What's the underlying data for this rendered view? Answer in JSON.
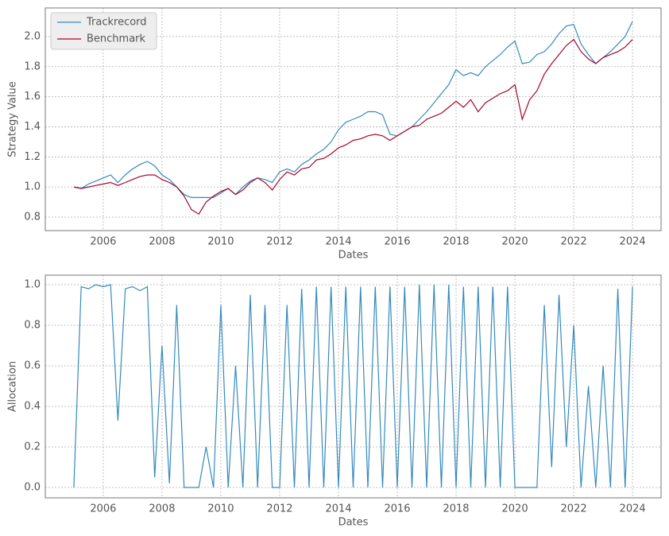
{
  "chart_data": [
    {
      "type": "line",
      "xlabel": "Dates",
      "ylabel": "Strategy Value",
      "xlim": [
        2004.03,
        2024.97
      ],
      "xticks": [
        2006,
        2008,
        2010,
        2012,
        2014,
        2016,
        2018,
        2020,
        2022,
        2024
      ],
      "ylim": [
        0.71,
        2.19
      ],
      "yticks": [
        0.8,
        {
          "value": 1,
          "label": "1.0"
        },
        1.2,
        1.4,
        1.6,
        1.8,
        {
          "value": 2,
          "label": "2.0"
        }
      ],
      "grid": true,
      "legend": "upper-left",
      "x": [
        2005,
        2005.25,
        2005.5,
        2005.75,
        2006,
        2006.25,
        2006.5,
        2006.75,
        2007,
        2007.25,
        2007.5,
        2007.75,
        2008,
        2008.25,
        2008.5,
        2008.75,
        2009,
        2009.25,
        2009.5,
        2009.75,
        2010,
        2010.25,
        2010.5,
        2010.75,
        2011,
        2011.25,
        2011.5,
        2011.75,
        2012,
        2012.25,
        2012.5,
        2012.75,
        2013,
        2013.25,
        2013.5,
        2013.75,
        2014,
        2014.25,
        2014.5,
        2014.75,
        2015,
        2015.25,
        2015.5,
        2015.75,
        2016,
        2016.25,
        2016.5,
        2016.75,
        2017,
        2017.25,
        2017.5,
        2017.75,
        2018,
        2018.25,
        2018.5,
        2018.75,
        2019,
        2019.25,
        2019.5,
        2019.75,
        2020,
        2020.25,
        2020.5,
        2020.75,
        2021,
        2021.25,
        2021.5,
        2021.75,
        2022,
        2022.25,
        2022.5,
        2022.75,
        2023,
        2023.25,
        2023.5,
        2023.75,
        2024
      ],
      "series": [
        {
          "name": "Trackrecord",
          "color": "#348abd",
          "values": [
            1.0,
            0.99,
            1.02,
            1.04,
            1.06,
            1.08,
            1.03,
            1.08,
            1.12,
            1.15,
            1.17,
            1.14,
            1.08,
            1.05,
            1.0,
            0.95,
            0.93,
            0.93,
            0.93,
            0.93,
            0.96,
            0.99,
            0.95,
            1.0,
            1.04,
            1.06,
            1.05,
            1.03,
            1.1,
            1.12,
            1.1,
            1.15,
            1.18,
            1.22,
            1.25,
            1.3,
            1.38,
            1.43,
            1.45,
            1.47,
            1.5,
            1.5,
            1.48,
            1.35,
            1.34,
            1.37,
            1.4,
            1.45,
            1.5,
            1.56,
            1.62,
            1.68,
            1.78,
            1.74,
            1.76,
            1.74,
            1.8,
            1.84,
            1.88,
            1.93,
            1.97,
            1.82,
            1.83,
            1.88,
            1.9,
            1.95,
            2.02,
            2.07,
            2.08,
            1.95,
            1.88,
            1.82,
            1.86,
            1.9,
            1.95,
            2.0,
            2.1
          ]
        },
        {
          "name": "Benchmark",
          "color": "#a60628",
          "values": [
            1.0,
            0.99,
            1.0,
            1.01,
            1.02,
            1.03,
            1.01,
            1.03,
            1.05,
            1.07,
            1.08,
            1.08,
            1.05,
            1.03,
            1.0,
            0.94,
            0.85,
            0.82,
            0.9,
            0.94,
            0.97,
            0.99,
            0.95,
            0.98,
            1.03,
            1.06,
            1.03,
            0.98,
            1.05,
            1.1,
            1.08,
            1.12,
            1.13,
            1.18,
            1.19,
            1.22,
            1.26,
            1.28,
            1.31,
            1.32,
            1.34,
            1.35,
            1.34,
            1.31,
            1.34,
            1.37,
            1.4,
            1.41,
            1.45,
            1.47,
            1.49,
            1.53,
            1.57,
            1.53,
            1.58,
            1.5,
            1.56,
            1.59,
            1.62,
            1.64,
            1.68,
            1.45,
            1.58,
            1.64,
            1.75,
            1.82,
            1.88,
            1.94,
            1.98,
            1.9,
            1.85,
            1.82,
            1.86,
            1.88,
            1.9,
            1.93,
            1.98
          ]
        }
      ]
    },
    {
      "type": "line",
      "xlabel": "Dates",
      "ylabel": "Allocation",
      "xlim": [
        2004.03,
        2024.97
      ],
      "xticks": [
        2006,
        2008,
        2010,
        2012,
        2014,
        2016,
        2018,
        2020,
        2022,
        2024
      ],
      "ylim": [
        -0.051,
        1.047
      ],
      "yticks": [
        {
          "value": 0,
          "label": "0.0"
        },
        0.2,
        0.4,
        0.6,
        0.8,
        {
          "value": 1,
          "label": "1.0"
        }
      ],
      "grid": true,
      "color": "#348abd",
      "x": [
        2005,
        2005.25,
        2005.5,
        2005.75,
        2006,
        2006.25,
        2006.5,
        2006.75,
        2007,
        2007.25,
        2007.5,
        2007.75,
        2008,
        2008.25,
        2008.5,
        2008.75,
        2009,
        2009.25,
        2009.5,
        2009.75,
        2010,
        2010.25,
        2010.5,
        2010.75,
        2011,
        2011.25,
        2011.5,
        2011.75,
        2012,
        2012.25,
        2012.5,
        2012.75,
        2013,
        2013.25,
        2013.5,
        2013.75,
        2014,
        2014.25,
        2014.5,
        2014.75,
        2015,
        2015.25,
        2015.5,
        2015.75,
        2016,
        2016.25,
        2016.5,
        2016.75,
        2017,
        2017.25,
        2017.5,
        2017.75,
        2018,
        2018.25,
        2018.5,
        2018.75,
        2019,
        2019.25,
        2019.5,
        2019.75,
        2020,
        2020.25,
        2020.5,
        2020.75,
        2021,
        2021.25,
        2021.5,
        2021.75,
        2022,
        2022.25,
        2022.5,
        2022.75,
        2023,
        2023.25,
        2023.5,
        2023.75,
        2024
      ],
      "values": [
        0.0,
        0.99,
        0.98,
        1.0,
        0.99,
        1.0,
        0.33,
        0.98,
        0.99,
        0.97,
        0.99,
        0.05,
        0.7,
        0.02,
        0.9,
        0.0,
        0.0,
        0.0,
        0.2,
        0.0,
        0.9,
        0.0,
        0.6,
        0.0,
        0.95,
        0.0,
        0.9,
        0.0,
        0.0,
        0.9,
        0.0,
        0.98,
        0.0,
        0.99,
        0.0,
        0.99,
        0.0,
        0.99,
        0.0,
        0.99,
        0.0,
        0.99,
        0.0,
        0.99,
        0.0,
        0.99,
        0.0,
        1.0,
        0.0,
        1.0,
        0.0,
        1.0,
        0.0,
        0.99,
        0.0,
        0.99,
        0.0,
        0.99,
        0.0,
        0.99,
        0.0,
        0.0,
        0.0,
        0.0,
        0.9,
        0.1,
        0.95,
        0.2,
        0.8,
        0.0,
        0.5,
        0.0,
        0.6,
        0.0,
        0.98,
        0.0,
        0.99
      ]
    }
  ]
}
